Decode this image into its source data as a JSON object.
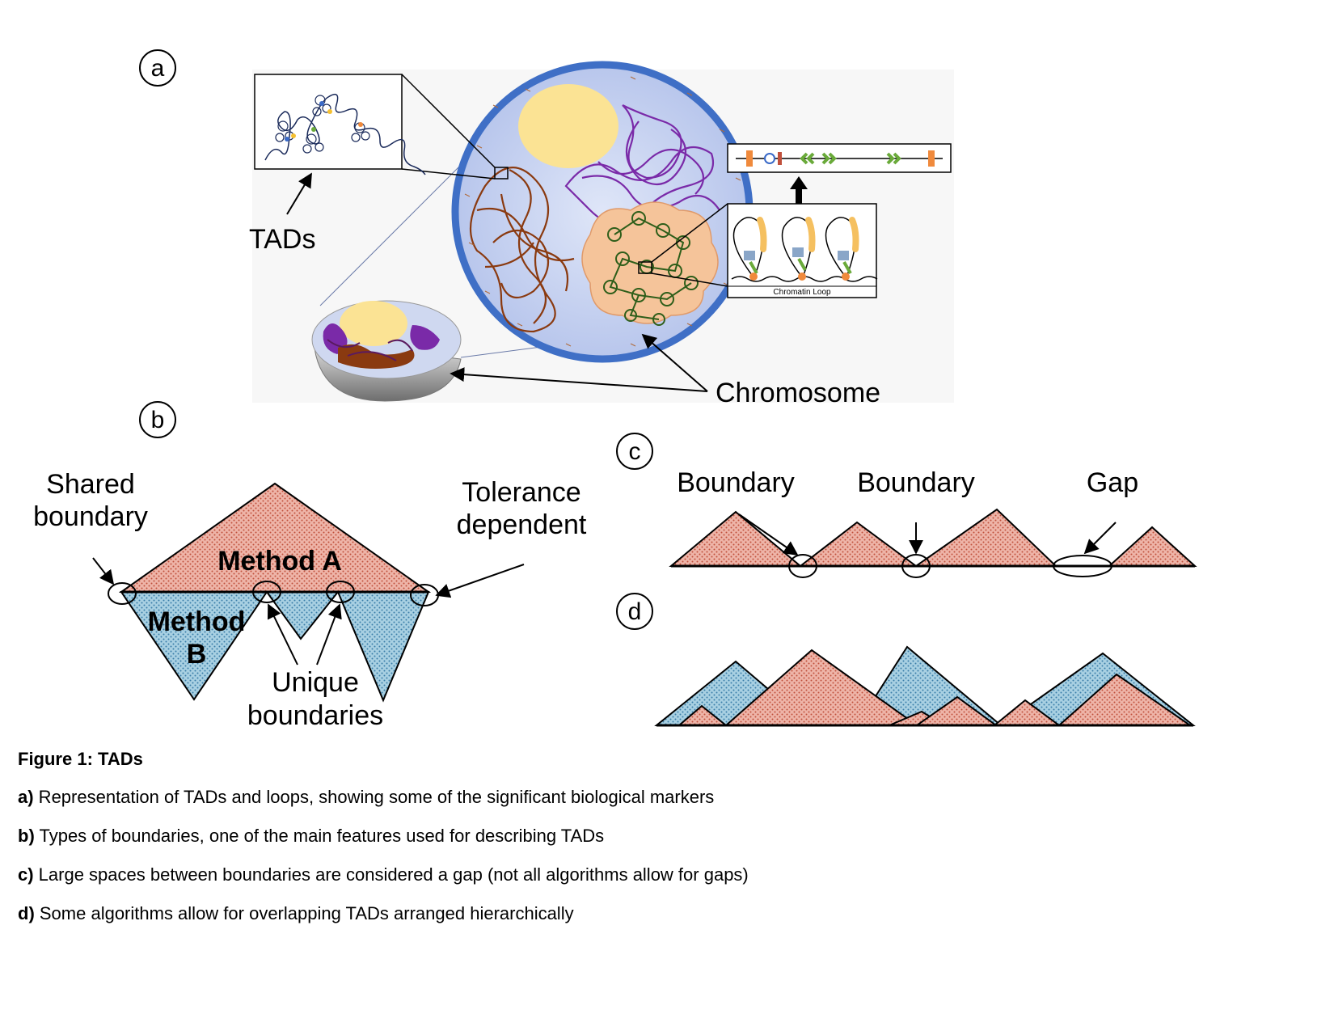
{
  "panels": {
    "a": {
      "letter": "a",
      "labels": {
        "tads": "TADs",
        "chromosome": "Chromosome",
        "loop": "Chromatin Loop"
      }
    },
    "b": {
      "letter": "b",
      "labels": {
        "shared_line1": "Shared",
        "shared_line2": "boundary",
        "tolerance_line1": "Tolerance",
        "tolerance_line2": "dependent",
        "method_a": "Method A",
        "method_b_line1": "Method",
        "method_b_line2": "B",
        "unique_line1": "Unique",
        "unique_line2": "boundaries"
      }
    },
    "c": {
      "letter": "c",
      "labels": {
        "boundary1": "Boundary",
        "boundary2": "Boundary",
        "gap": "Gap"
      }
    },
    "d": {
      "letter": "d"
    }
  },
  "caption": {
    "title": "Figure 1: TADs",
    "items": [
      {
        "letter": "a)",
        "text": " Representation of TADs and loops, showing some of the significant biological markers"
      },
      {
        "letter": "b)",
        "text": " Types of boundaries, one of the main features used for describing TADs"
      },
      {
        "letter": "c)",
        "text": " Large spaces between boundaries are considered a gap (not all algorithms allow for gaps)"
      },
      {
        "letter": "d)",
        "text": " Some algorithms allow for overlapping TADs arranged hierarchically"
      }
    ]
  },
  "colors": {
    "red_fill": "#e8a89c",
    "blue_fill": "#9cc8dc",
    "nucleus_fill": "#c8d4f0",
    "nucleus_ring": "#3f6fc6",
    "nucleolus": "#fbe394",
    "brown_chromatin": "#8a3a10",
    "purple_chromatin": "#7a2aa8",
    "green_chromatin": "#2e5e1a",
    "peach_territory": "#f5c49a",
    "orange_marker": "#f08a3c",
    "green_marker": "#6aaa3a"
  }
}
